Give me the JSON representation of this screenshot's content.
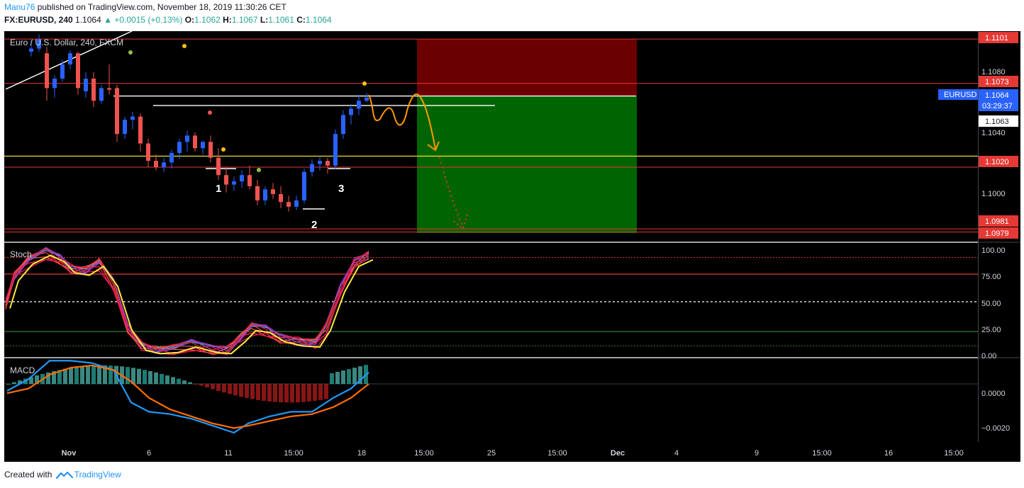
{
  "header": {
    "author": "Manu76",
    "published_text": " published on TradingView.com, November 18, 2019 11:30:26 CET",
    "symbol": "FX:EURUSD, 240",
    "last": "1.1064",
    "change": "+0.0015 (+0.13%)",
    "o_label": "O:",
    "o_value": "1.1062",
    "h_label": "H:",
    "h_value": "1.1067",
    "l_label": "L:",
    "l_value": "1.1061",
    "c_label": "C:",
    "c_value": "1.1064"
  },
  "main_pane": {
    "title": "Euro / U.S. Dollar, 240, FXCM",
    "price_ticks": [
      "1.1080",
      "1.1040",
      "1.1000"
    ],
    "hline_labels": [
      "1.1101",
      "1.1073",
      "1.1020",
      "1.0981",
      "1.0979"
    ],
    "current_price_label": "1.1064",
    "symbol_tag": "EURUSD",
    "countdown": "03:29:37",
    "secondary_price": "1.1063",
    "pattern_labels": [
      "1",
      "2",
      "3"
    ]
  },
  "stoch_pane": {
    "title": "Stoch",
    "ticks": [
      "100.00",
      "75.00",
      "50.00",
      "25.00",
      "0.00"
    ]
  },
  "macd_pane": {
    "title": "MACD",
    "ticks": [
      "0.0000",
      "−0.0020"
    ]
  },
  "time_axis": [
    "Nov",
    "6",
    "11",
    "15:00",
    "18",
    "15:00",
    "25",
    "15:00",
    "Dec",
    "4",
    "9",
    "15:00",
    "16",
    "15:00"
  ],
  "footer": {
    "created_with": "Created with",
    "brand": "TradingView"
  },
  "colors": {
    "background": "#000000",
    "bull": "#2962ff",
    "bear": "#ef5350",
    "stop_zone": "#6b0000",
    "target_zone": "#006400",
    "projection": "#ff9800",
    "yellow_line": "#ffeb3b",
    "red_line": "#e53935"
  },
  "chart_data": {
    "type": "candlestick",
    "symbol": "EURUSD",
    "timeframe": "240",
    "ylim": [
      1.0973,
      1.1106
    ],
    "candles": [
      [
        1.1093,
        1.11,
        1.109,
        1.1095
      ],
      [
        1.1095,
        1.1104,
        1.1093,
        1.1101
      ],
      [
        1.1092,
        1.1096,
        1.1062,
        1.107
      ],
      [
        1.107,
        1.1078,
        1.1064,
        1.1076
      ],
      [
        1.1076,
        1.1088,
        1.1074,
        1.1085
      ],
      [
        1.1085,
        1.1094,
        1.1082,
        1.1092
      ],
      [
        1.1092,
        1.1093,
        1.1066,
        1.107
      ],
      [
        1.1068,
        1.108,
        1.1064,
        1.1076
      ],
      [
        1.1076,
        1.108,
        1.1058,
        1.1062
      ],
      [
        1.1062,
        1.1072,
        1.106,
        1.107
      ],
      [
        1.107,
        1.1085,
        1.1066,
        1.1069
      ],
      [
        1.107,
        1.1072,
        1.1036,
        1.1041
      ],
      [
        1.1041,
        1.1052,
        1.1038,
        1.105
      ],
      [
        1.105,
        1.1055,
        1.1044,
        1.1052
      ],
      [
        1.1052,
        1.1054,
        1.103,
        1.1035
      ],
      [
        1.1035,
        1.1038,
        1.102,
        1.1024
      ],
      [
        1.1024,
        1.1028,
        1.1018,
        1.102
      ],
      [
        1.102,
        1.1026,
        1.1017,
        1.1023
      ],
      [
        1.1023,
        1.1031,
        1.1019,
        1.1029
      ],
      [
        1.1029,
        1.1038,
        1.1025,
        1.1036
      ],
      [
        1.1036,
        1.1043,
        1.103,
        1.104
      ],
      [
        1.104,
        1.1042,
        1.103,
        1.1032
      ],
      [
        1.1032,
        1.1037,
        1.1028,
        1.1036
      ],
      [
        1.1036,
        1.104,
        1.1023,
        1.1026
      ],
      [
        1.1026,
        1.1032,
        1.1012,
        1.1015
      ],
      [
        1.1015,
        1.102,
        1.1004,
        1.1009
      ],
      [
        1.1009,
        1.1014,
        1.1005,
        1.1011
      ],
      [
        1.1011,
        1.1018,
        1.1007,
        1.1015
      ],
      [
        1.1015,
        1.1021,
        1.1006,
        1.1008
      ],
      [
        1.1008,
        1.1012,
        1.0996,
        1.0999
      ],
      [
        1.0999,
        1.1008,
        1.0996,
        1.1006
      ],
      [
        1.1006,
        1.101,
        1.1,
        1.1003
      ],
      [
        1.1003,
        1.1008,
        1.0994,
        1.0998
      ],
      [
        1.0998,
        1.1002,
        1.0992,
        1.0995
      ],
      [
        1.0995,
        1.1002,
        1.0993,
        1.0999
      ],
      [
        1.0999,
        1.1019,
        1.0997,
        1.1017
      ],
      [
        1.1017,
        1.1025,
        1.1014,
        1.1022
      ],
      [
        1.1022,
        1.1027,
        1.1018,
        1.1024
      ],
      [
        1.1024,
        1.1026,
        1.1016,
        1.1021
      ],
      [
        1.1021,
        1.1044,
        1.1019,
        1.1041
      ],
      [
        1.1041,
        1.1056,
        1.1038,
        1.1053
      ],
      [
        1.1053,
        1.106,
        1.1047,
        1.1057
      ],
      [
        1.1057,
        1.1066,
        1.1053,
        1.1062
      ],
      [
        1.1062,
        1.1067,
        1.1061,
        1.1064
      ]
    ],
    "horizontal_levels": [
      1.1101,
      1.1073,
      1.102,
      1.0981,
      1.0979
    ],
    "support_line": 1.1027,
    "resistance_lines": [
      1.1065,
      1.1059
    ],
    "position": {
      "entry": 1.1064,
      "stop": 1.1101,
      "target": 1.0975
    },
    "stoch_ylim": [
      0,
      100
    ],
    "stoch_levels": [
      90,
      75,
      50,
      23,
      10
    ],
    "macd_ylim": [
      -0.0025,
      0.0011
    ]
  }
}
